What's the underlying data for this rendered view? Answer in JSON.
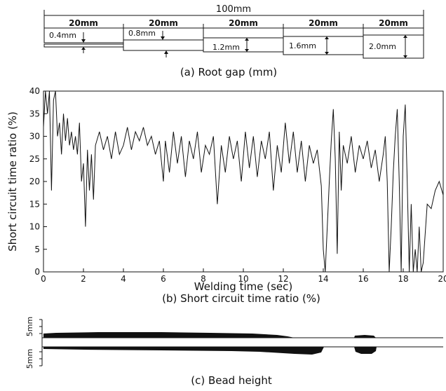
{
  "panel_a": {
    "caption": "(a) Root gap (mm)",
    "total_length": "100mm",
    "segments": [
      {
        "length": "20mm",
        "gap": "0.4mm"
      },
      {
        "length": "20mm",
        "gap": "0.8mm"
      },
      {
        "length": "20mm",
        "gap": "1.2mm"
      },
      {
        "length": "20mm",
        "gap": "1.6mm"
      },
      {
        "length": "20mm",
        "gap": "2.0mm"
      }
    ]
  },
  "chart_data": [
    {
      "type": "line",
      "title": "(b) Short circuit time ratio (%)",
      "xlabel": "Welding time (sec)",
      "ylabel": "Short circuit time ratio (%)",
      "xlim": [
        0,
        20
      ],
      "ylim": [
        0,
        40
      ],
      "x_ticks": [
        "0",
        "2",
        "4",
        "6",
        "8",
        "10",
        "12",
        "14",
        "16",
        "18",
        "20"
      ],
      "y_ticks": [
        "0",
        "5",
        "10",
        "15",
        "20",
        "25",
        "30",
        "35",
        "40"
      ],
      "grid": false,
      "series": [
        {
          "x": [
            0,
            0.1,
            0.2,
            0.3,
            0.4,
            0.5,
            0.6,
            0.7,
            0.8,
            0.9,
            1.0,
            1.1,
            1.2,
            1.3,
            1.4,
            1.5,
            1.6,
            1.7,
            1.8,
            1.9,
            2.0,
            2.1,
            2.2,
            2.3,
            2.4,
            2.5,
            2.6,
            2.8,
            3.0,
            3.2,
            3.4,
            3.6,
            3.8,
            4.0,
            4.2,
            4.4,
            4.6,
            4.8,
            5.0,
            5.2,
            5.4,
            5.6,
            5.8,
            6.0,
            6.1,
            6.3,
            6.5,
            6.7,
            6.9,
            7.1,
            7.3,
            7.5,
            7.7,
            7.9,
            8.1,
            8.3,
            8.5,
            8.7,
            8.9,
            9.1,
            9.3,
            9.5,
            9.7,
            9.9,
            10.1,
            10.3,
            10.5,
            10.7,
            10.9,
            11.1,
            11.3,
            11.5,
            11.7,
            11.9,
            12.1,
            12.3,
            12.5,
            12.7,
            12.9,
            13.1,
            13.3,
            13.5,
            13.7,
            13.9,
            14.0,
            14.1,
            14.2,
            14.3,
            14.4,
            14.5,
            14.6,
            14.7,
            14.8,
            14.9,
            15.0,
            15.2,
            15.4,
            15.6,
            15.8,
            16.0,
            16.2,
            16.4,
            16.6,
            16.8,
            17.0,
            17.1,
            17.2,
            17.3,
            17.4,
            17.5,
            17.6,
            17.7,
            17.8,
            17.9,
            18.0,
            18.1,
            18.2,
            18.3,
            18.4,
            18.5,
            18.6,
            18.7,
            18.8,
            18.9,
            19.0,
            19.2,
            19.4,
            19.6,
            19.8,
            20.0
          ],
          "y": [
            32,
            40,
            35,
            40,
            18,
            38,
            40,
            30,
            33,
            26,
            35,
            29,
            34,
            28,
            31,
            27,
            30,
            26,
            33,
            20,
            24,
            10,
            27,
            18,
            26,
            16,
            28,
            31,
            27,
            30,
            25,
            31,
            26,
            28,
            32,
            27,
            31,
            29,
            32,
            28,
            30,
            26,
            29,
            20,
            29,
            22,
            31,
            24,
            30,
            21,
            29,
            25,
            31,
            22,
            28,
            26,
            30,
            15,
            28,
            22,
            30,
            25,
            29,
            20,
            31,
            23,
            30,
            21,
            29,
            25,
            31,
            18,
            28,
            22,
            33,
            24,
            31,
            22,
            29,
            20,
            28,
            24,
            27,
            19,
            5,
            0,
            10,
            20,
            29,
            36,
            25,
            4,
            31,
            18,
            28,
            24,
            30,
            22,
            28,
            25,
            29,
            23,
            27,
            20,
            26,
            30,
            20,
            0,
            10,
            22,
            30,
            36,
            20,
            0,
            30,
            37,
            20,
            0,
            15,
            0,
            5,
            0,
            10,
            0,
            2,
            15,
            14,
            18,
            20,
            17
          ]
        }
      ]
    }
  ],
  "panel_c": {
    "caption": "(c) Bead height",
    "scale_top": "5mm",
    "scale_bottom": "5mm"
  }
}
